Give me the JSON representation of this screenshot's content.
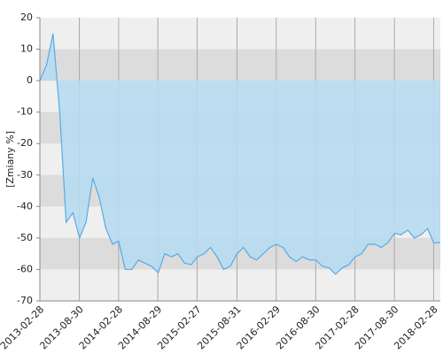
{
  "chart_data": {
    "type": "area",
    "y_label": "[Zmiany %]",
    "x": [
      "2013-02-28",
      "2013-03-31",
      "2013-04-30",
      "2013-05-31",
      "2013-06-30",
      "2013-07-31",
      "2013-08-31",
      "2013-09-30",
      "2013-10-31",
      "2013-11-30",
      "2013-12-31",
      "2014-01-31",
      "2014-02-28",
      "2014-03-31",
      "2014-04-30",
      "2014-05-31",
      "2014-06-30",
      "2014-07-31",
      "2014-08-31",
      "2014-09-30",
      "2014-10-31",
      "2014-11-30",
      "2014-12-31",
      "2015-01-31",
      "2015-02-28",
      "2015-03-31",
      "2015-04-30",
      "2015-05-31",
      "2015-06-30",
      "2015-07-31",
      "2015-08-31",
      "2015-09-30",
      "2015-10-31",
      "2015-11-30",
      "2015-12-31",
      "2016-01-31",
      "2016-02-29",
      "2016-03-31",
      "2016-04-30",
      "2016-05-31",
      "2016-06-30",
      "2016-07-31",
      "2016-08-31",
      "2016-09-30",
      "2016-10-31",
      "2016-11-30",
      "2016-12-31",
      "2017-01-31",
      "2017-02-28",
      "2017-03-31",
      "2017-04-30",
      "2017-05-31",
      "2017-06-30",
      "2017-07-31",
      "2017-08-31",
      "2017-09-30",
      "2017-10-31",
      "2017-11-30",
      "2017-12-31",
      "2018-01-31",
      "2018-02-28",
      "2018-03-31"
    ],
    "series": [
      {
        "color": "#5aaae6",
        "fill": "#b6dcef",
        "values": [
          0,
          5,
          15,
          -10,
          -45,
          -42,
          -50,
          -45,
          -31,
          -37,
          -47,
          -52,
          -51,
          -60,
          -60,
          -57,
          -58,
          -59,
          -61,
          -55,
          -56,
          -55,
          -58,
          -58.5,
          -56,
          -55,
          -53,
          -56,
          -60,
          -59,
          -55,
          -53,
          -56,
          -57,
          -55,
          -53,
          -52,
          -53,
          -56,
          -57.5,
          -56,
          -57,
          -57,
          -59,
          -59.5,
          -61.5,
          -59.5,
          -58.5,
          -56,
          -55,
          -52,
          -52,
          -53,
          -51.5,
          -48.5,
          -49,
          -47.5,
          -50,
          -49,
          -47,
          -51.5,
          -51.5
        ]
      }
    ],
    "xlim": [
      "2013-02-28",
      "2018-03-31"
    ],
    "xticks": [
      "2013-02-28",
      "2013-08-30",
      "2014-02-28",
      "2014-08-29",
      "2015-02-27",
      "2015-08-31",
      "2016-02-29",
      "2016-08-30",
      "2017-02-28",
      "2017-08-30",
      "2018-02-28"
    ],
    "ylim": [
      -70,
      20
    ],
    "yticks": [
      -70,
      -60,
      -50,
      -40,
      -30,
      -20,
      -10,
      0,
      10,
      20
    ],
    "bands": true,
    "grid": true
  }
}
